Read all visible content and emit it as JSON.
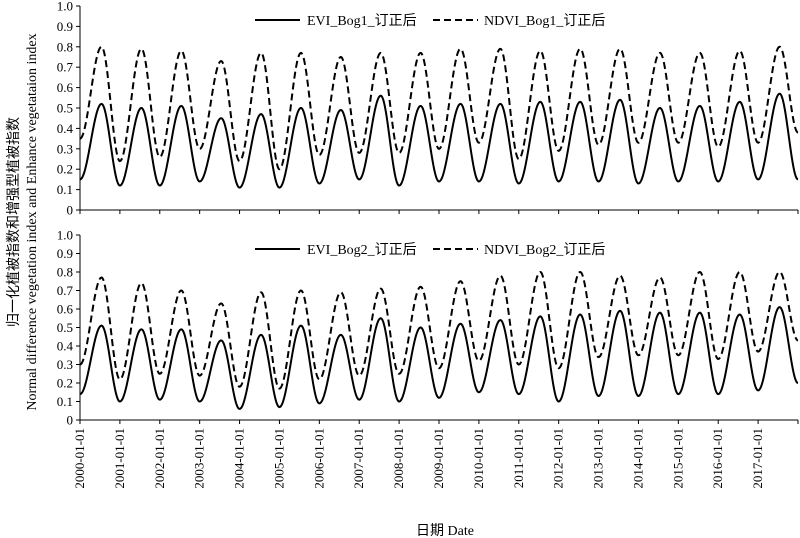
{
  "chart_data": {
    "type": "line",
    "ylabel_cn": "归一化植被指数和增强型植被指数",
    "ylabel_en": "Normal difference vegetation index and Enhance vegetataion index",
    "xlabel": "日期 Date",
    "x_tick_labels": [
      "2000-01-01",
      "2001-01-01",
      "2002-01-01",
      "2003-01-01",
      "2004-01-01",
      "2005-01-01",
      "2006-01-01",
      "2007-01-01",
      "2008-01-01",
      "2009-01-01",
      "2010-01-01",
      "2011-01-01",
      "2012-01-01",
      "2013-01-01",
      "2014-01-01",
      "2015-01-01",
      "2016-01-01",
      "2017-01-01"
    ],
    "y_tick_labels": [
      "0",
      "0.1",
      "0.2",
      "0.3",
      "0.4",
      "0.5",
      "0.6",
      "0.7",
      "0.8",
      "0.9",
      "1.0"
    ],
    "ylim": [
      0,
      1.0
    ],
    "x_range": [
      "2000-01-01",
      "2018-01-01"
    ],
    "peak_day_of_year": 197,
    "panels": [
      {
        "legend_position": "top-center",
        "series": [
          {
            "name": "EVI_Bog1_订正后",
            "style": "solid",
            "min_values": [
              0.15,
              0.12,
              0.12,
              0.14,
              0.11,
              0.11,
              0.13,
              0.15,
              0.12,
              0.14,
              0.14,
              0.13,
              0.14,
              0.14,
              0.13,
              0.14,
              0.14,
              0.15
            ],
            "max_values": [
              0.52,
              0.5,
              0.51,
              0.45,
              0.47,
              0.5,
              0.49,
              0.56,
              0.51,
              0.52,
              0.52,
              0.53,
              0.53,
              0.54,
              0.5,
              0.51,
              0.53,
              0.57
            ],
            "end_value": 0.15
          },
          {
            "name": "NDVI_Bog1_订正后",
            "style": "dashed",
            "min_values": [
              0.35,
              0.24,
              0.26,
              0.3,
              0.24,
              0.2,
              0.27,
              0.28,
              0.28,
              0.3,
              0.33,
              0.25,
              0.29,
              0.32,
              0.33,
              0.33,
              0.31,
              0.33
            ],
            "max_values": [
              0.8,
              0.79,
              0.78,
              0.73,
              0.77,
              0.77,
              0.75,
              0.77,
              0.77,
              0.79,
              0.79,
              0.78,
              0.79,
              0.79,
              0.77,
              0.77,
              0.78,
              0.8
            ],
            "end_value": 0.38
          }
        ]
      },
      {
        "legend_position": "top-center",
        "series": [
          {
            "name": "EVI_Bog2_订正后",
            "style": "solid",
            "min_values": [
              0.14,
              0.1,
              0.11,
              0.1,
              0.06,
              0.07,
              0.09,
              0.11,
              0.1,
              0.12,
              0.15,
              0.14,
              0.1,
              0.13,
              0.13,
              0.14,
              0.14,
              0.16
            ],
            "max_values": [
              0.51,
              0.49,
              0.49,
              0.43,
              0.46,
              0.51,
              0.46,
              0.55,
              0.5,
              0.52,
              0.54,
              0.56,
              0.57,
              0.59,
              0.58,
              0.58,
              0.57,
              0.61
            ],
            "end_value": 0.2
          },
          {
            "name": "NDVI_Bog2_订正后",
            "style": "dashed",
            "min_values": [
              0.3,
              0.22,
              0.25,
              0.24,
              0.18,
              0.17,
              0.22,
              0.24,
              0.25,
              0.28,
              0.32,
              0.3,
              0.28,
              0.34,
              0.35,
              0.35,
              0.33,
              0.37
            ],
            "max_values": [
              0.77,
              0.74,
              0.7,
              0.63,
              0.69,
              0.7,
              0.69,
              0.71,
              0.72,
              0.75,
              0.78,
              0.8,
              0.8,
              0.78,
              0.77,
              0.8,
              0.8,
              0.8
            ],
            "end_value": 0.43
          }
        ]
      }
    ]
  }
}
